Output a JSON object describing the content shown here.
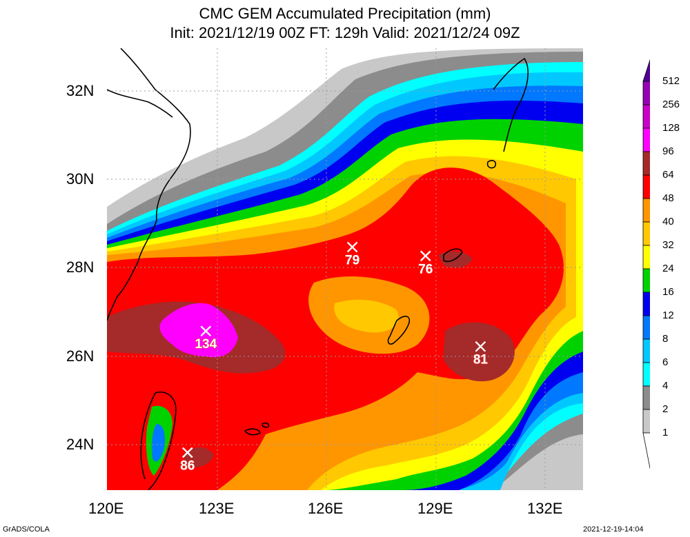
{
  "title": {
    "line1": "CMC GEM Accumulated Precipitation (mm)",
    "line2": "Init: 2021/12/19 00Z  FT: 129h  Valid: 2021/12/24 09Z"
  },
  "axes": {
    "lat_labels": [
      "32N",
      "30N",
      "28N",
      "26N",
      "24N"
    ],
    "lon_labels": [
      "120E",
      "123E",
      "126E",
      "129E",
      "132E"
    ]
  },
  "colorbar": {
    "levels": [
      "512",
      "256",
      "128",
      "96",
      "64",
      "48",
      "40",
      "32",
      "24",
      "16",
      "12",
      "8",
      "6",
      "4",
      "2",
      "1"
    ],
    "colors": {
      "below_1": "#ffffff",
      "1_2": "#c8c8c8",
      "2_4": "#8c8c8c",
      "4_6": "#00ffff",
      "6_8": "#00c8ff",
      "8_12": "#0078ff",
      "12_16": "#0000f0",
      "16_24": "#00d200",
      "24_32": "#ffff00",
      "32_40": "#ffc800",
      "40_48": "#ff9600",
      "48_64": "#ff0000",
      "64_96": "#a52a2a",
      "96_128": "#ff00ff",
      "128_256": "#c800c8",
      "256_512": "#9600b4",
      "above_512": "#500096"
    }
  },
  "maxima": [
    {
      "value": "134",
      "lon": 122.7,
      "lat": 26.6
    },
    {
      "value": "79",
      "lon": 126.7,
      "lat": 28.5
    },
    {
      "value": "76",
      "lon": 128.7,
      "lat": 28.3
    },
    {
      "value": "81",
      "lon": 130.2,
      "lat": 26.25
    },
    {
      "value": "86",
      "lon": 122.2,
      "lat": 23.85
    }
  ],
  "footer": {
    "left": "GrADS/COLA",
    "right": "2021-12-19-14:04"
  }
}
